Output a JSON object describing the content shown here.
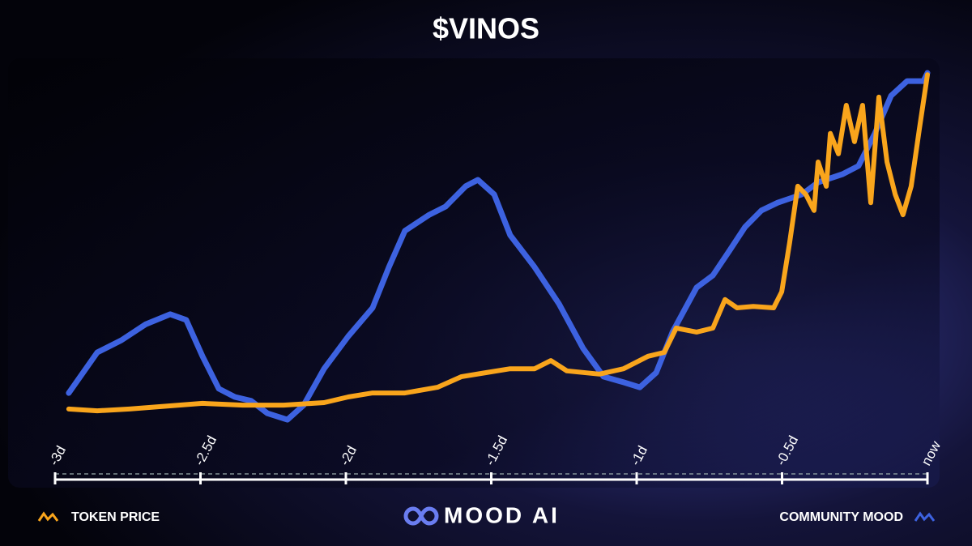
{
  "chart_data": {
    "type": "line",
    "title": "$VINOS",
    "xlim": [
      -3,
      0
    ],
    "xticks": [
      {
        "value": -3,
        "label": "-3d"
      },
      {
        "value": -2.5,
        "label": "-2.5d"
      },
      {
        "value": -2,
        "label": "-2d"
      },
      {
        "value": -1.5,
        "label": "-1.5d"
      },
      {
        "value": -1,
        "label": "-1d"
      },
      {
        "value": -0.5,
        "label": "-0.5d"
      },
      {
        "value": 0,
        "label": "now"
      }
    ],
    "ylim": [
      0,
      100
    ],
    "legend": "bottom",
    "series": [
      {
        "name": "TOKEN PRICE",
        "color": "#f9a51c",
        "legend": "left",
        "x": [
          -2.953,
          -2.855,
          -2.744,
          -2.632,
          -2.493,
          -2.354,
          -2.214,
          -2.075,
          -1.992,
          -1.908,
          -1.797,
          -1.685,
          -1.602,
          -1.518,
          -1.435,
          -1.351,
          -1.295,
          -1.24,
          -1.128,
          -1.045,
          -0.961,
          -0.905,
          -0.864,
          -0.794,
          -0.738,
          -0.696,
          -0.655,
          -0.599,
          -0.529,
          -0.501,
          -0.474,
          -0.446,
          -0.418,
          -0.39,
          -0.376,
          -0.348,
          -0.334,
          -0.306,
          -0.279,
          -0.251,
          -0.223,
          -0.195,
          -0.167,
          -0.139,
          -0.111,
          -0.084,
          -0.056,
          -0.028,
          0
        ],
        "values": [
          5.7,
          5.2,
          5.7,
          6.4,
          7.3,
          6.8,
          6.8,
          7.5,
          9.1,
          10.2,
          10.2,
          11.8,
          14.8,
          15.9,
          17.0,
          17.0,
          19.3,
          16.4,
          15.5,
          17.0,
          20.5,
          21.6,
          28.4,
          27.3,
          28.4,
          36.4,
          34.1,
          34.5,
          34.1,
          38.6,
          52.3,
          68.2,
          65.9,
          61.4,
          75.0,
          68.2,
          83.0,
          77.3,
          90.9,
          80.7,
          90.9,
          63.6,
          93.2,
          75.0,
          65.9,
          60.2,
          68.2,
          84.1,
          99.5
        ]
      },
      {
        "name": "COMMUNITY MOOD",
        "color": "#3d62e0",
        "legend": "right",
        "x": [
          -2.953,
          -2.855,
          -2.772,
          -2.688,
          -2.604,
          -2.549,
          -2.493,
          -2.437,
          -2.382,
          -2.326,
          -2.27,
          -2.201,
          -2.145,
          -2.075,
          -1.992,
          -1.908,
          -1.852,
          -1.797,
          -1.713,
          -1.657,
          -1.588,
          -1.546,
          -1.49,
          -1.435,
          -1.351,
          -1.267,
          -1.184,
          -1.114,
          -1.045,
          -0.989,
          -0.933,
          -0.877,
          -0.794,
          -0.738,
          -0.682,
          -0.627,
          -0.571,
          -0.515,
          -0.432,
          -0.376,
          -0.292,
          -0.237,
          -0.181,
          -0.125,
          -0.07,
          -0.014,
          0
        ],
        "values": [
          10.2,
          21.6,
          25.0,
          29.5,
          32.3,
          30.7,
          20.5,
          11.4,
          9.1,
          8.0,
          4.5,
          2.7,
          6.8,
          17.0,
          26.1,
          34.1,
          45.5,
          55.7,
          60.2,
          62.5,
          68.2,
          70.0,
          65.9,
          54.5,
          45.5,
          35.2,
          22.7,
          14.8,
          13.2,
          11.8,
          15.9,
          27.3,
          39.8,
          43.2,
          50.0,
          56.8,
          61.4,
          63.6,
          65.9,
          69.3,
          71.6,
          73.9,
          83.0,
          93.6,
          97.7,
          97.7,
          100
        ]
      }
    ]
  },
  "branding": "MOOD AI"
}
